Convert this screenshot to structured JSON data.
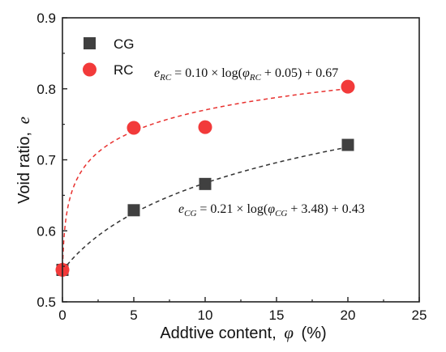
{
  "chart_data": {
    "type": "scatter",
    "xlabel": "Addtive content,",
    "xlabel_symbol": "φ",
    "xlabel_unit": "(%)",
    "ylabel": "Void ratio,",
    "ylabel_symbol": "e",
    "xlim": [
      0,
      25
    ],
    "ylim": [
      0.5,
      0.9
    ],
    "xticks": [
      "0",
      "5",
      "10",
      "15",
      "20",
      "25"
    ],
    "yticks": [
      "0.5",
      "0.6",
      "0.7",
      "0.8",
      "0.9"
    ],
    "grid": false,
    "legend_position": "top-left",
    "series": [
      {
        "name": "CG",
        "marker": "square",
        "color": "#404040",
        "x": [
          0,
          5,
          10,
          20
        ],
        "y": [
          0.545,
          0.629,
          0.666,
          0.721
        ],
        "fit": {
          "a": 0.21,
          "b": 3.48,
          "c": 0.43,
          "line_color": "#333333"
        },
        "equation": {
          "lhs_base": "e",
          "lhs_sub": "CG",
          "middle": " = 0.21 × log(",
          "var_base": "φ",
          "var_sub": "CG",
          "rhs": " + 3.48) + 0.43"
        }
      },
      {
        "name": "RC",
        "marker": "circle",
        "color": "#f23a3a",
        "x": [
          0,
          5,
          10,
          20
        ],
        "y": [
          0.545,
          0.745,
          0.746,
          0.803
        ],
        "fit": {
          "a": 0.1,
          "b": 0.05,
          "c": 0.67,
          "line_color": "#e8312f"
        },
        "equation": {
          "lhs_base": "e",
          "lhs_sub": "RC",
          "middle": " = 0.10 × log(",
          "var_base": "φ",
          "var_sub": "RC",
          "rhs": " + 0.05) + 0.67"
        }
      }
    ]
  }
}
